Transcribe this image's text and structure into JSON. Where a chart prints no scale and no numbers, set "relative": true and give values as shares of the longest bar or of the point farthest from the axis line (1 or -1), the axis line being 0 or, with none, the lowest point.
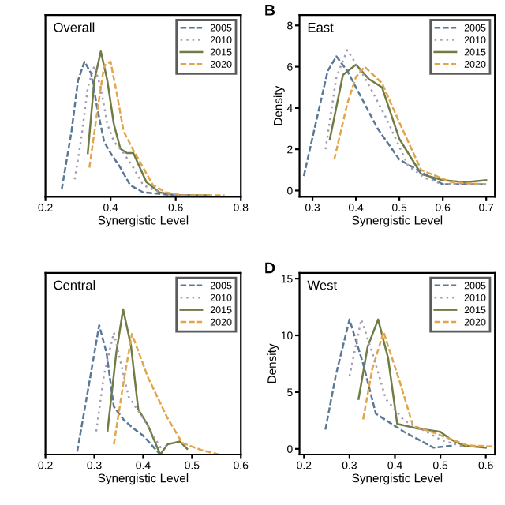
{
  "chart_data": [
    {
      "type": "line",
      "title": "Overall",
      "xlabel": "Synergistic Level",
      "relative": true,
      "xlim": [
        0.2,
        0.8
      ],
      "xticks": [
        0.2,
        0.4,
        0.6,
        0.8
      ],
      "tick_labels": "x",
      "legend": "top right",
      "grid": false,
      "series": [
        {
          "name": "2005",
          "color": "#5b7896",
          "line_style": "dashed",
          "x": [
            0.25,
            0.28,
            0.3,
            0.32,
            0.34,
            0.36,
            0.38,
            0.4,
            0.43,
            0.46,
            0.5,
            0.55,
            0.6,
            0.65
          ],
          "values": [
            0.05,
            0.45,
            0.8,
            0.93,
            0.85,
            0.6,
            0.38,
            0.3,
            0.2,
            0.08,
            0.03,
            0.02,
            0.01,
            0.01
          ]
        },
        {
          "name": "2010",
          "color": "#a39bb8",
          "line_style": "dotted",
          "x": [
            0.29,
            0.31,
            0.33,
            0.35,
            0.37,
            0.39,
            0.41,
            0.44,
            0.47,
            0.5,
            0.55,
            0.6,
            0.65
          ],
          "values": [
            0.12,
            0.4,
            0.75,
            0.9,
            0.75,
            0.5,
            0.38,
            0.3,
            0.2,
            0.08,
            0.03,
            0.01,
            0.01
          ]
        },
        {
          "name": "2015",
          "color": "#6f7d45",
          "line_style": "solid",
          "x": [
            0.33,
            0.35,
            0.37,
            0.39,
            0.41,
            0.43,
            0.45,
            0.47,
            0.49,
            0.51,
            0.55,
            0.6,
            0.65,
            0.7
          ],
          "values": [
            0.3,
            0.8,
            1.0,
            0.8,
            0.5,
            0.33,
            0.3,
            0.3,
            0.2,
            0.1,
            0.03,
            0.01,
            0.01,
            0.01
          ]
        },
        {
          "name": "2020",
          "color": "#e1a54a",
          "line_style": "dashed",
          "x": [
            0.335,
            0.36,
            0.38,
            0.4,
            0.42,
            0.44,
            0.47,
            0.5,
            0.53,
            0.57,
            0.62,
            0.68,
            0.75
          ],
          "values": [
            0.2,
            0.6,
            0.9,
            0.93,
            0.7,
            0.45,
            0.32,
            0.2,
            0.08,
            0.03,
            0.01,
            0.01,
            0.01
          ]
        }
      ]
    },
    {
      "type": "line",
      "title": "East",
      "xlabel": "Synergistic Level",
      "ylabel": "Density",
      "annotations": [
        "B"
      ],
      "xlim": [
        0.27,
        0.72
      ],
      "xticks": [
        0.3,
        0.4,
        0.5,
        0.6,
        0.7
      ],
      "ylim": [
        -0.3,
        8.5
      ],
      "yticks": [
        0,
        2,
        4,
        6,
        8
      ],
      "legend": "top right",
      "grid": false,
      "series": [
        {
          "name": "2005",
          "color": "#5b7896",
          "line_style": "dashed",
          "x": [
            0.28,
            0.31,
            0.335,
            0.355,
            0.38,
            0.4,
            0.45,
            0.5,
            0.55,
            0.6,
            0.65,
            0.7
          ],
          "values": [
            0.7,
            3.5,
            5.8,
            6.5,
            5.8,
            5.0,
            3.0,
            1.5,
            0.9,
            0.3,
            0.3,
            0.3
          ]
        },
        {
          "name": "2010",
          "color": "#a39bb8",
          "line_style": "dotted",
          "x": [
            0.33,
            0.355,
            0.38,
            0.42,
            0.47,
            0.52,
            0.56,
            0.6,
            0.65,
            0.7
          ],
          "values": [
            2.0,
            5.5,
            6.8,
            5.5,
            3.5,
            1.2,
            0.6,
            0.3,
            0.3,
            0.3
          ]
        },
        {
          "name": "2015",
          "color": "#6f7d45",
          "line_style": "solid",
          "x": [
            0.34,
            0.37,
            0.4,
            0.43,
            0.46,
            0.5,
            0.55,
            0.6,
            0.65,
            0.7
          ],
          "values": [
            2.5,
            5.6,
            6.1,
            5.4,
            5.0,
            2.5,
            0.8,
            0.5,
            0.4,
            0.5
          ]
        },
        {
          "name": "2020",
          "color": "#e1a54a",
          "line_style": "dashed",
          "x": [
            0.35,
            0.38,
            0.4,
            0.42,
            0.46,
            0.5,
            0.55,
            0.62,
            0.7
          ],
          "values": [
            1.5,
            4.2,
            5.5,
            6.0,
            5.2,
            3.3,
            1.0,
            0.4,
            0.3
          ]
        }
      ]
    },
    {
      "type": "line",
      "title": "Central",
      "xlabel": "Synergistic Level",
      "relative": true,
      "xlim": [
        0.2,
        0.6
      ],
      "xticks": [
        0.2,
        0.3,
        0.4,
        0.5,
        0.6
      ],
      "tick_labels": "x",
      "legend": "top right",
      "grid": false,
      "series": [
        {
          "name": "2005",
          "color": "#5b7896",
          "line_style": "dashed",
          "x": [
            0.265,
            0.29,
            0.31,
            0.325,
            0.34,
            0.36,
            0.38,
            0.4,
            0.435
          ],
          "values": [
            0.02,
            0.5,
            0.89,
            0.7,
            0.33,
            0.24,
            0.18,
            0.13,
            0.0
          ]
        },
        {
          "name": "2010",
          "color": "#a39bb8",
          "line_style": "dotted",
          "x": [
            0.304,
            0.32,
            0.34,
            0.37,
            0.4,
            0.435,
            0.45
          ],
          "values": [
            0.16,
            0.55,
            0.84,
            0.4,
            0.25,
            0.05,
            0.06
          ]
        },
        {
          "name": "2015",
          "color": "#6f7d45",
          "line_style": "solid",
          "x": [
            0.327,
            0.345,
            0.359,
            0.375,
            0.39,
            0.41,
            0.435,
            0.45,
            0.475,
            0.49
          ],
          "values": [
            0.16,
            0.7,
            1.0,
            0.75,
            0.31,
            0.2,
            0.0,
            0.07,
            0.09,
            0.04
          ]
        },
        {
          "name": "2020",
          "color": "#e1a54a",
          "line_style": "dashed",
          "x": [
            0.34,
            0.36,
            0.377,
            0.41,
            0.45,
            0.48,
            0.52,
            0.555
          ],
          "values": [
            0.07,
            0.5,
            0.83,
            0.53,
            0.25,
            0.08,
            0.03,
            0.0
          ]
        }
      ]
    },
    {
      "type": "line",
      "title": "West",
      "xlabel": "Synergistic Level",
      "ylabel": "Density",
      "annotations": [
        "D"
      ],
      "xlim": [
        0.19,
        0.62
      ],
      "xticks": [
        0.2,
        0.3,
        0.4,
        0.5,
        0.6
      ],
      "ylim": [
        -0.5,
        15.5
      ],
      "yticks": [
        0,
        5,
        10,
        15
      ],
      "legend": "top right",
      "grid": false,
      "series": [
        {
          "name": "2005",
          "color": "#5b7896",
          "line_style": "dashed",
          "x": [
            0.247,
            0.27,
            0.3,
            0.33,
            0.358,
            0.42,
            0.485,
            0.53
          ],
          "values": [
            1.7,
            6.5,
            11.4,
            7.5,
            3.1,
            1.5,
            0.1,
            0.3
          ]
        },
        {
          "name": "2010",
          "color": "#a39bb8",
          "line_style": "dotted",
          "x": [
            0.3,
            0.326,
            0.35,
            0.38,
            0.42,
            0.47,
            0.5,
            0.55
          ],
          "values": [
            6.4,
            11.4,
            8.5,
            4.4,
            2.5,
            1.5,
            0.8,
            0.2
          ]
        },
        {
          "name": "2015",
          "color": "#6f7d45",
          "line_style": "solid",
          "x": [
            0.32,
            0.34,
            0.363,
            0.385,
            0.405,
            0.45,
            0.5,
            0.52,
            0.55,
            0.6
          ],
          "values": [
            4.4,
            9.0,
            11.4,
            8.0,
            2.2,
            1.8,
            1.5,
            0.9,
            0.3,
            0.1
          ]
        },
        {
          "name": "2020",
          "color": "#e1a54a",
          "line_style": "dashed",
          "x": [
            0.33,
            0.35,
            0.375,
            0.41,
            0.44,
            0.48,
            0.52,
            0.56,
            0.62
          ],
          "values": [
            2.6,
            7.0,
            10.3,
            6.0,
            2.0,
            1.5,
            0.9,
            0.3,
            0.2
          ]
        }
      ]
    }
  ]
}
